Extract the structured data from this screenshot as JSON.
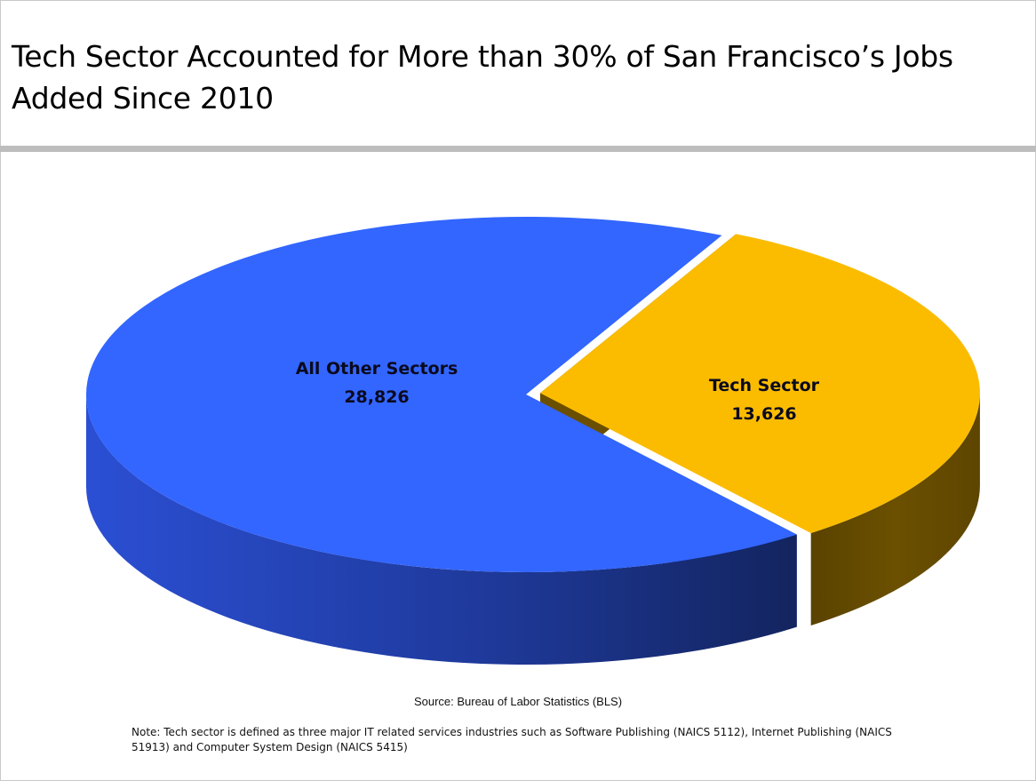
{
  "slide": {
    "title": "Tech Sector Accounted for More than 30% of San Francisco’s Jobs Added Since 2010",
    "source": "Source: Bureau of Labor Statistics (BLS)",
    "note": "Note: Tech sector is defined as three major IT related services industries such as Software Publishing (NAICS 5112), Internet Publishing (NAICS 51913) and Computer System Design (NAICS 5415)"
  },
  "chart_data": {
    "type": "pie",
    "style": "3d",
    "exploded_slice": "Tech Sector",
    "slices": [
      {
        "name": "All Other Sectors",
        "value": 28826,
        "value_label": "28,826",
        "color": "#3366ff"
      },
      {
        "name": "Tech Sector",
        "value": 13626,
        "value_label": "13,626",
        "color": "#fbbc00"
      }
    ]
  }
}
